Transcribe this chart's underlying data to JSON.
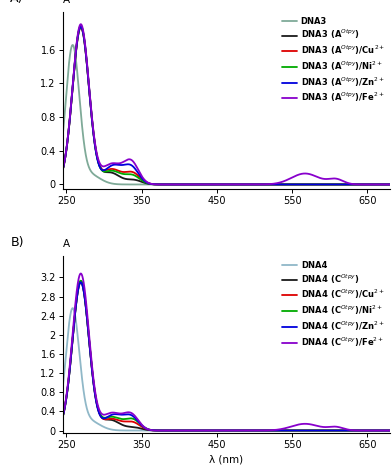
{
  "panel_A": {
    "label": "A)",
    "axis_label": "A",
    "xlim": [
      245,
      680
    ],
    "ylim": [
      -0.05,
      2.05
    ],
    "yticks": [
      0,
      0.4,
      0.8,
      1.2,
      1.6
    ],
    "series": [
      {
        "name": "DNA3",
        "color": "#7faa98",
        "lw": 1.3
      },
      {
        "name": "DNA3 (A$^{Otpy}$)",
        "color": "#1a1a1a",
        "lw": 1.3
      },
      {
        "name": "DNA3 (A$^{Otpy}$)/Cu$^{2+}$",
        "color": "#dd0000",
        "lw": 1.3
      },
      {
        "name": "DNA3 (A$^{Otpy}$)/Ni$^{2+}$",
        "color": "#00aa00",
        "lw": 1.3
      },
      {
        "name": "DNA3 (A$^{Otpy}$)/Zn$^{2+}$",
        "color": "#0000dd",
        "lw": 1.3
      },
      {
        "name": "DNA3 (A$^{Otpy}$)/Fe$^{2+}$",
        "color": "#8800cc",
        "lw": 1.3
      }
    ]
  },
  "panel_B": {
    "label": "B)",
    "axis_label": "A",
    "xlim": [
      245,
      680
    ],
    "ylim": [
      -0.05,
      3.65
    ],
    "yticks": [
      0,
      0.4,
      0.8,
      1.2,
      1.6,
      2.0,
      2.4,
      2.8,
      3.2
    ],
    "series": [
      {
        "name": "DNA4",
        "color": "#90b8c8",
        "lw": 1.3
      },
      {
        "name": "DNA4 (C$^{Otpy}$)",
        "color": "#1a1a1a",
        "lw": 1.3
      },
      {
        "name": "DNA4 (C$^{Otpy}$)/Cu$^{2+}$",
        "color": "#dd0000",
        "lw": 1.3
      },
      {
        "name": "DNA4 (C$^{Otpy}$)/Ni$^{2+}$",
        "color": "#00aa00",
        "lw": 1.3
      },
      {
        "name": "DNA4 (C$^{Otpy}$)/Zn$^{2+}$",
        "color": "#0000dd",
        "lw": 1.3
      },
      {
        "name": "DNA4 (C$^{Otpy}$)/Fe$^{2+}$",
        "color": "#8800cc",
        "lw": 1.3
      }
    ]
  },
  "xlabel": "λ (nm)",
  "xticks": [
    250,
    350,
    450,
    550,
    650
  ],
  "background_color": "#ffffff",
  "legend_fontsize": 6.0,
  "axis_fontsize": 7.5,
  "tick_fontsize": 7.0
}
